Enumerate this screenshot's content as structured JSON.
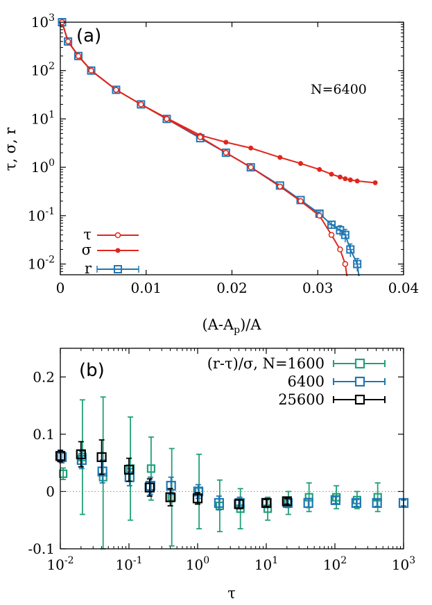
{
  "chart_data": [
    {
      "type": "line",
      "panel_label": "(a)",
      "annotation": "N=6400",
      "xlabel": "(A-A",
      "xlabel_sub": "p",
      "xlabel_tail": ")/A",
      "ylabel": "τ, σ, r",
      "x_scale": "linear",
      "y_scale": "log",
      "xlim": [
        0,
        0.04
      ],
      "ylim": [
        0.006,
        1000
      ],
      "x_ticks": [
        {
          "v": 0,
          "label": "0"
        },
        {
          "v": 0.01,
          "label": "0.01"
        },
        {
          "v": 0.02,
          "label": "0.02"
        },
        {
          "v": 0.03,
          "label": "0.03"
        },
        {
          "v": 0.04,
          "label": "0.04"
        }
      ],
      "y_ticks": [
        {
          "v": 1000,
          "base": "10",
          "exp": "3"
        },
        {
          "v": 100,
          "base": "10",
          "exp": "2"
        },
        {
          "v": 10,
          "base": "10",
          "exp": "1"
        },
        {
          "v": 1,
          "base": "10",
          "exp": "0"
        },
        {
          "v": 0.1,
          "base": "10",
          "exp": "-1"
        },
        {
          "v": 0.01,
          "base": "10",
          "exp": "-2"
        }
      ],
      "legend_position": "bottom-left",
      "series": [
        {
          "name": "τ",
          "marker": "open-circle",
          "color": "#e0261c",
          "x": [
            0.0002,
            0.0009,
            0.0021,
            0.0036,
            0.0065,
            0.0094,
            0.0124,
            0.0163,
            0.0193,
            0.0222,
            0.0256,
            0.028,
            0.0302,
            0.0316,
            0.0326,
            0.0332
          ],
          "y": [
            1000,
            400,
            200,
            100,
            40,
            20,
            10,
            4.2,
            2.0,
            1.0,
            0.4,
            0.2,
            0.1,
            0.04,
            0.02,
            0.01
          ]
        },
        {
          "name": "σ",
          "marker": "filled-circle",
          "color": "#e0261c",
          "x": [
            0.0002,
            0.0009,
            0.0021,
            0.0036,
            0.0065,
            0.0094,
            0.0124,
            0.0163,
            0.0193,
            0.0222,
            0.0256,
            0.028,
            0.0302,
            0.0316,
            0.0326,
            0.0332,
            0.0338,
            0.0346,
            0.0367
          ],
          "y": [
            1000,
            400,
            200,
            100,
            40,
            20,
            10.4,
            4.6,
            3.3,
            2.5,
            1.6,
            1.2,
            0.9,
            0.72,
            0.63,
            0.58,
            0.55,
            0.52,
            0.48
          ]
        },
        {
          "name": "r",
          "marker": "open-square",
          "color": "#1f77b4",
          "x": [
            0.0002,
            0.0009,
            0.0021,
            0.0036,
            0.0065,
            0.0094,
            0.0124,
            0.0163,
            0.0193,
            0.0222,
            0.0256,
            0.028,
            0.0302,
            0.0316,
            0.0326,
            0.0332,
            0.0338,
            0.0346
          ],
          "y": [
            1000,
            400,
            200,
            100,
            40,
            20,
            10,
            4.0,
            2.0,
            1.0,
            0.42,
            0.21,
            0.11,
            0.065,
            0.05,
            0.04,
            0.02,
            0.01
          ],
          "err_y": [
            0,
            0,
            0,
            0,
            0,
            0,
            0,
            0,
            0,
            0,
            0,
            0,
            0.01,
            0.012,
            0.012,
            0.012,
            0.006,
            0.003
          ],
          "err_x": [
            0,
            0,
            0,
            0,
            0,
            0,
            0,
            0,
            0,
            0,
            0,
            0,
            0,
            0.0004,
            0.0004,
            0.0004,
            0.0004,
            0.0004
          ]
        }
      ]
    },
    {
      "type": "scatter",
      "panel_label": "(b)",
      "xlabel": "τ",
      "x_scale": "log",
      "y_scale": "linear",
      "xlim": [
        0.01,
        1000
      ],
      "ylim": [
        -0.1,
        0.25
      ],
      "x_ticks": [
        {
          "v": 0.01,
          "base": "10",
          "exp": "-2"
        },
        {
          "v": 0.1,
          "base": "10",
          "exp": "-1"
        },
        {
          "v": 1,
          "base": "10",
          "exp": "0"
        },
        {
          "v": 10,
          "base": "10",
          "exp": "1"
        },
        {
          "v": 100,
          "base": "10",
          "exp": "2"
        },
        {
          "v": 1000,
          "base": "10",
          "exp": "3"
        }
      ],
      "y_ticks": [
        {
          "v": -0.1,
          "label": "-0.1"
        },
        {
          "v": 0,
          "label": "0"
        },
        {
          "v": 0.1,
          "label": "0.1"
        },
        {
          "v": 0.2,
          "label": "0.2"
        }
      ],
      "zero_line": true,
      "legend_position": "top-right",
      "legend_title": "(r-τ)/σ, N=",
      "series": [
        {
          "name": "1600",
          "color": "#21a07a",
          "x": [
            0.011,
            0.021,
            0.042,
            0.105,
            0.21,
            0.42,
            1.05,
            2.1,
            4.2,
            10.5,
            21,
            42,
            105,
            210,
            420
          ],
          "y": [
            0.031,
            0.06,
            0.025,
            0.04,
            0.04,
            -0.01,
            0.0,
            -0.025,
            -0.03,
            -0.03,
            -0.02,
            -0.01,
            -0.01,
            -0.015,
            -0.01
          ],
          "err": [
            0.01,
            0.1,
            0.14,
            0.09,
            0.055,
            0.085,
            0.065,
            0.045,
            0.035,
            0.02,
            0.02,
            0.025,
            0.02,
            0.015,
            0.025
          ]
        },
        {
          "name": "6400",
          "color": "#1f77b4",
          "x": [
            0.0105,
            0.0205,
            0.041,
            0.102,
            0.205,
            0.41,
            1.02,
            2.05,
            4.1,
            10.2,
            20.5,
            41,
            102,
            205,
            410,
            1000
          ],
          "y": [
            0.06,
            0.055,
            0.035,
            0.025,
            0.01,
            0.01,
            0.0,
            -0.02,
            -0.02,
            -0.02,
            -0.02,
            -0.02,
            -0.015,
            -0.02,
            -0.02,
            -0.02
          ],
          "err": [
            0.01,
            0.015,
            0.02,
            0.015,
            0.015,
            0.015,
            0.012,
            0.012,
            0.01,
            0.008,
            0.008,
            0.008,
            0.006,
            0.006,
            0.006,
            0.005
          ]
        },
        {
          "name": "25600",
          "color": "#000000",
          "x": [
            0.01,
            0.02,
            0.04,
            0.1,
            0.2,
            0.4,
            1.0,
            4.0,
            10,
            20
          ],
          "y": [
            0.062,
            0.065,
            0.06,
            0.038,
            0.007,
            -0.01,
            -0.012,
            -0.022,
            -0.02,
            -0.017
          ],
          "err": [
            0.01,
            0.022,
            0.03,
            0.02,
            0.015,
            0.015,
            0.01,
            0.008,
            0.006,
            0.005
          ]
        }
      ]
    }
  ]
}
